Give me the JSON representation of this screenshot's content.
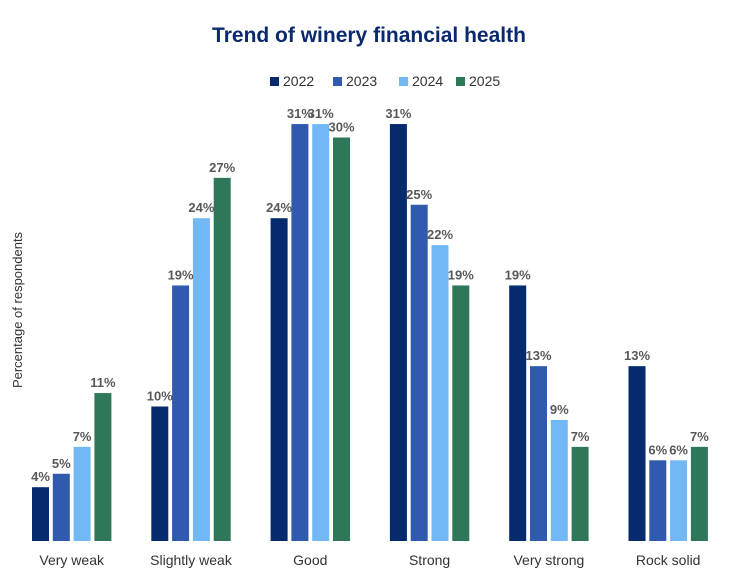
{
  "chart_data": {
    "type": "bar",
    "title": "Trend of winery financial health",
    "xlabel": "",
    "ylabel": "Percentage of respondents",
    "ylim": [
      0,
      32
    ],
    "grid": false,
    "legend_position": "top",
    "categories": [
      "Very weak",
      "Slightly weak",
      "Good",
      "Strong",
      "Very strong",
      "Rock solid"
    ],
    "series": [
      {
        "name": "2022",
        "color": "#062a6e",
        "values": [
          4,
          10,
          24,
          31,
          19,
          13
        ]
      },
      {
        "name": "2023",
        "color": "#2f5aad",
        "values": [
          5,
          19,
          31,
          25,
          13,
          6
        ]
      },
      {
        "name": "2024",
        "color": "#72b8f5",
        "values": [
          7,
          24,
          31,
          22,
          9,
          6
        ]
      },
      {
        "name": "2025",
        "color": "#2e7758",
        "values": [
          11,
          27,
          30,
          19,
          7,
          7
        ]
      }
    ],
    "value_suffix": "%"
  }
}
